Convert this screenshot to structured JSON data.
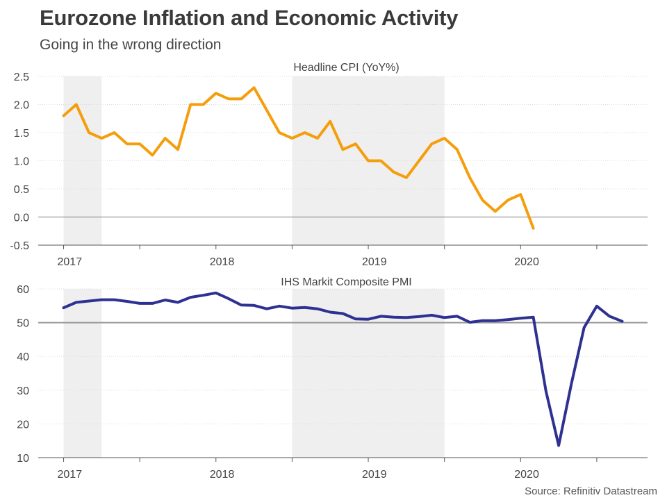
{
  "title": "Eurozone Inflation and Economic Activity",
  "subtitle": "Going in the wrong direction",
  "source": "Source: Refinitiv Datastream",
  "colors": {
    "cpi_line": "#f59e0b",
    "pmi_line": "#2e3192",
    "shading": "#efefef",
    "grid": "#dddddd",
    "reference": "#999999"
  },
  "chart_data": [
    {
      "type": "line",
      "title": "Headline CPI (YoY%)",
      "x_ticks": [
        "2017",
        "2018",
        "2019",
        "2020"
      ],
      "y_ticks": [
        "2.5",
        "2.0",
        "1.5",
        "1.0",
        "0.5",
        "0.0",
        "-0.5"
      ],
      "ylim": [
        -0.5,
        2.5
      ],
      "reference_value": 0,
      "shaded_periods": [
        [
          "2017-01",
          "2017-04"
        ],
        [
          "2018-07",
          "2019-07"
        ]
      ],
      "series": [
        {
          "name": "Headline CPI (YoY%)",
          "x": [
            "2017-01",
            "2017-02",
            "2017-03",
            "2017-04",
            "2017-05",
            "2017-06",
            "2017-07",
            "2017-08",
            "2017-09",
            "2017-10",
            "2017-11",
            "2017-12",
            "2018-01",
            "2018-02",
            "2018-03",
            "2018-04",
            "2018-05",
            "2018-06",
            "2018-07",
            "2018-08",
            "2018-09",
            "2018-10",
            "2018-11",
            "2018-12",
            "2019-01",
            "2019-02",
            "2019-03",
            "2019-04",
            "2019-05",
            "2019-06",
            "2019-07",
            "2019-08",
            "2019-09",
            "2019-10",
            "2019-11",
            "2019-12",
            "2020-01",
            "2020-02",
            "2020-03",
            "2020-04",
            "2020-05",
            "2020-06",
            "2020-07",
            "2020-08",
            "2020-09"
          ],
          "values": [
            1.8,
            2.0,
            1.5,
            1.4,
            1.5,
            1.3,
            1.3,
            1.1,
            1.4,
            1.2,
            2.0,
            2.0,
            2.2,
            2.1,
            2.1,
            2.3,
            1.9,
            1.5,
            1.4,
            1.5,
            1.4,
            1.7,
            1.2,
            1.3,
            1.0,
            1.0,
            0.8,
            0.7,
            1.0,
            1.3,
            1.4,
            1.2,
            0.7,
            0.3,
            0.1,
            0.3,
            0.4,
            -0.2,
            null,
            null,
            null,
            null,
            null,
            null,
            null
          ]
        }
      ]
    },
    {
      "type": "line",
      "title": "IHS Markit Composite PMI",
      "x_ticks": [
        "2017",
        "2018",
        "2019",
        "2020"
      ],
      "y_ticks": [
        "60",
        "50",
        "40",
        "30",
        "20",
        "10"
      ],
      "ylim": [
        10,
        60
      ],
      "reference_value": 50,
      "shaded_periods": [
        [
          "2017-01",
          "2017-04"
        ],
        [
          "2018-07",
          "2019-07"
        ]
      ],
      "series": [
        {
          "name": "IHS Markit Composite PMI",
          "x": [
            "2017-01",
            "2017-02",
            "2017-03",
            "2017-04",
            "2017-05",
            "2017-06",
            "2017-07",
            "2017-08",
            "2017-09",
            "2017-10",
            "2017-11",
            "2017-12",
            "2018-01",
            "2018-02",
            "2018-03",
            "2018-04",
            "2018-05",
            "2018-06",
            "2018-07",
            "2018-08",
            "2018-09",
            "2018-10",
            "2018-11",
            "2018-12",
            "2019-01",
            "2019-02",
            "2019-03",
            "2019-04",
            "2019-05",
            "2019-06",
            "2019-07",
            "2019-08",
            "2019-09",
            "2019-10",
            "2019-11",
            "2019-12",
            "2020-01",
            "2020-02",
            "2020-03",
            "2020-04",
            "2020-05",
            "2020-06",
            "2020-07",
            "2020-08",
            "2020-09"
          ],
          "values": [
            54.4,
            56.0,
            56.4,
            56.8,
            56.8,
            56.3,
            55.7,
            55.7,
            56.7,
            56.0,
            57.5,
            58.1,
            58.8,
            57.1,
            55.2,
            55.1,
            54.1,
            54.9,
            54.3,
            54.5,
            54.1,
            53.1,
            52.7,
            51.1,
            51.0,
            51.9,
            51.6,
            51.5,
            51.8,
            52.2,
            51.5,
            51.9,
            50.1,
            50.6,
            50.6,
            50.9,
            51.3,
            51.6,
            29.7,
            13.6,
            31.9,
            48.5,
            54.9,
            51.9,
            50.4
          ]
        }
      ]
    }
  ]
}
